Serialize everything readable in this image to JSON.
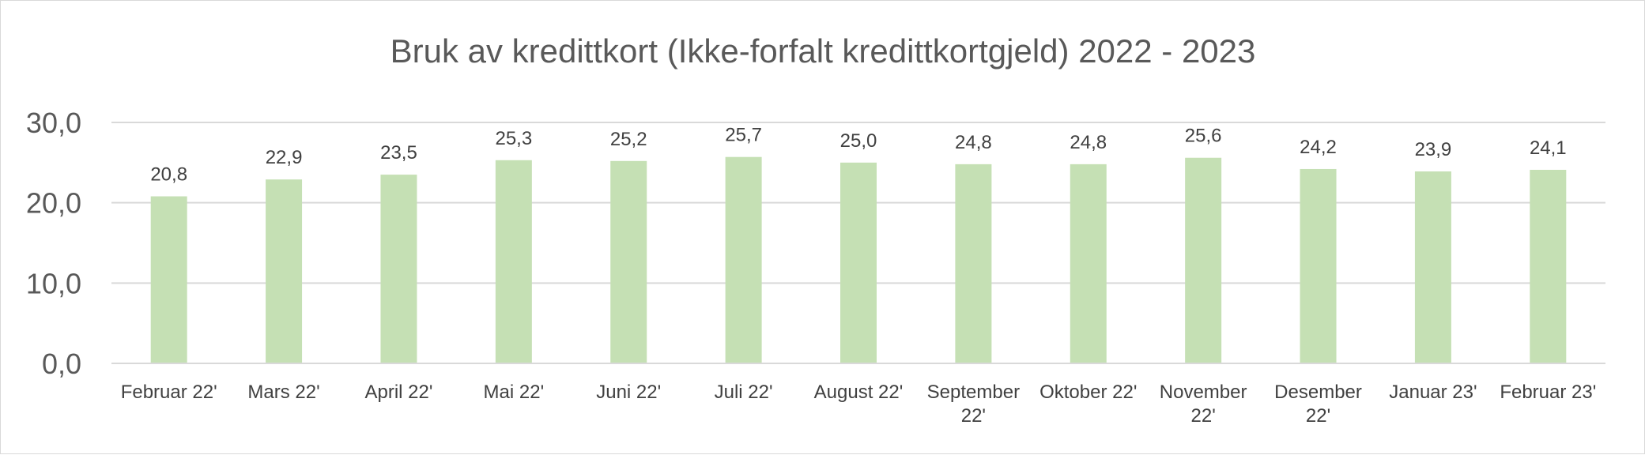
{
  "chart_data": {
    "type": "bar",
    "title": "Bruk av kredittkort (Ikke-forfalt kredittkortgjeld) 2022 - 2023",
    "xlabel": "",
    "ylabel": "",
    "ylim": [
      0,
      30
    ],
    "yticks": [
      0,
      10,
      20,
      30
    ],
    "ytick_labels": [
      "0,0",
      "10,0",
      "20,0",
      "30,0"
    ],
    "grid": true,
    "legend": "none",
    "bar_color": "#c5e0b4",
    "categories": [
      "Februar 22'",
      "Mars 22'",
      "April 22'",
      "Mai 22'",
      "Juni 22'",
      "Juli 22'",
      "August 22'",
      "September 22'",
      "Oktober 22'",
      "November 22'",
      "Desember 22'",
      "Januar 23'",
      "Februar 23'"
    ],
    "category_lines": [
      [
        "Februar 22'"
      ],
      [
        "Mars 22'"
      ],
      [
        "April 22'"
      ],
      [
        "Mai 22'"
      ],
      [
        "Juni 22'"
      ],
      [
        "Juli 22'"
      ],
      [
        "August 22'"
      ],
      [
        "September",
        "22'"
      ],
      [
        "Oktober 22'"
      ],
      [
        "November",
        "22'"
      ],
      [
        "Desember",
        "22'"
      ],
      [
        "Januar 23'"
      ],
      [
        "Februar 23'"
      ]
    ],
    "values": [
      20.8,
      22.9,
      23.5,
      25.3,
      25.2,
      25.7,
      25.0,
      24.8,
      24.8,
      25.6,
      24.2,
      23.9,
      24.1
    ],
    "value_labels": [
      "20,8",
      "22,9",
      "23,5",
      "25,3",
      "25,2",
      "25,7",
      "25,0",
      "24,8",
      "24,8",
      "25,6",
      "24,2",
      "23,9",
      "24,1"
    ]
  }
}
